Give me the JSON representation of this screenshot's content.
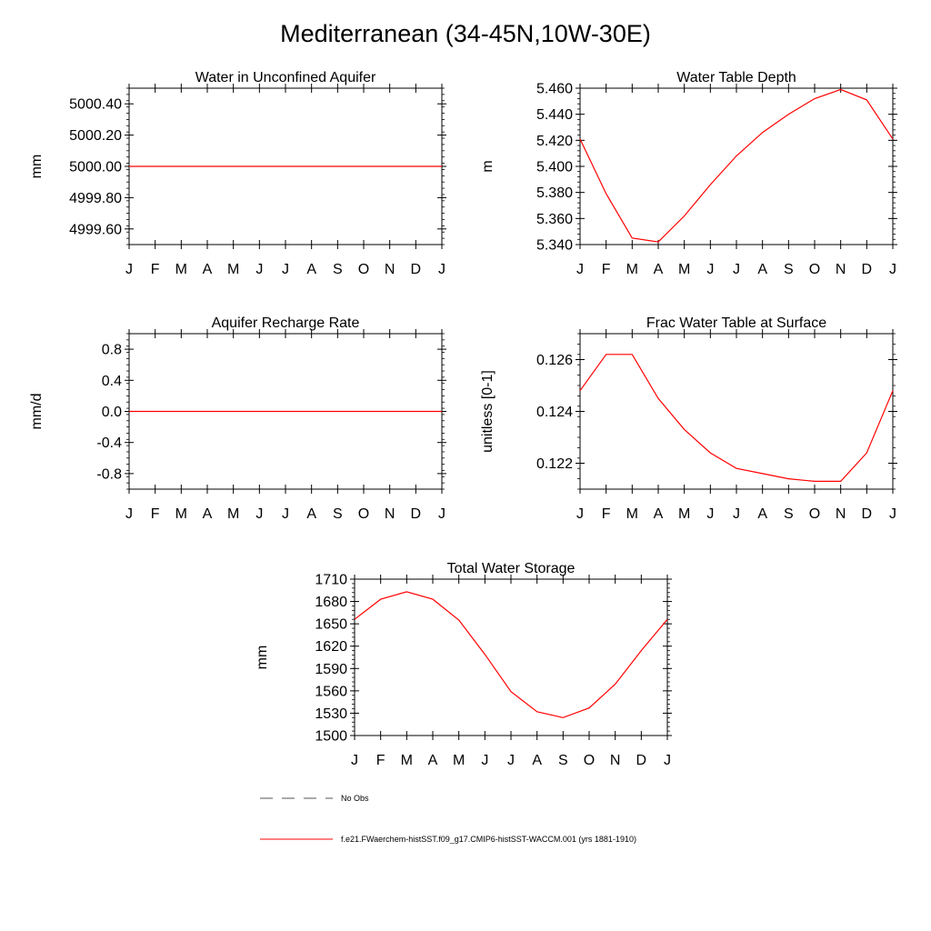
{
  "title": "Mediterranean (34-45N,10W-30E)",
  "months": [
    "J",
    "F",
    "M",
    "A",
    "M",
    "J",
    "J",
    "A",
    "S",
    "O",
    "N",
    "D",
    "J"
  ],
  "chart_data": [
    {
      "type": "line",
      "title": "Water in Unconfined Aquifer",
      "ylabel": "mm",
      "ylim": [
        4999.5,
        5000.5
      ],
      "yticks": [
        4999.6,
        4999.8,
        5000.0,
        5000.2,
        5000.4
      ],
      "ytick_labels": [
        "4999.60",
        "4999.80",
        "5000.00",
        "5000.20",
        "5000.40"
      ],
      "series": [
        {
          "values": [
            5000,
            5000,
            5000,
            5000,
            5000,
            5000,
            5000,
            5000,
            5000,
            5000,
            5000,
            5000,
            5000
          ]
        }
      ]
    },
    {
      "type": "line",
      "title": "Water Table Depth",
      "ylabel": "m",
      "ylim": [
        5.34,
        5.46
      ],
      "yticks": [
        5.34,
        5.36,
        5.38,
        5.4,
        5.42,
        5.44,
        5.46
      ],
      "ytick_labels": [
        "5.340",
        "5.360",
        "5.380",
        "5.400",
        "5.420",
        "5.440",
        "5.460"
      ],
      "series": [
        {
          "values": [
            5.421,
            5.379,
            5.345,
            5.342,
            5.362,
            5.386,
            5.408,
            5.426,
            5.44,
            5.452,
            5.459,
            5.451,
            5.421
          ]
        }
      ]
    },
    {
      "type": "line",
      "title": "Aquifer Recharge Rate",
      "ylabel": "mm/d",
      "ylim": [
        -1.0,
        1.0
      ],
      "yticks": [
        -0.8,
        -0.4,
        0.0,
        0.4,
        0.8
      ],
      "ytick_labels": [
        "-0.8",
        "-0.4",
        "0.0",
        "0.4",
        "0.8"
      ],
      "series": [
        {
          "values": [
            0,
            0,
            0,
            0,
            0,
            0,
            0,
            0,
            0,
            0,
            0,
            0,
            0
          ]
        }
      ]
    },
    {
      "type": "line",
      "title": "Frac Water Table at Surface",
      "ylabel": "unitless [0-1]",
      "ylim": [
        0.121,
        0.127
      ],
      "yticks": [
        0.122,
        0.124,
        0.126
      ],
      "ytick_labels": [
        "0.122",
        "0.124",
        "0.126"
      ],
      "series": [
        {
          "values": [
            0.1248,
            0.1262,
            0.1262,
            0.1245,
            0.1233,
            0.1224,
            0.1218,
            0.1216,
            0.1214,
            0.1213,
            0.1213,
            0.1224,
            0.1248
          ]
        }
      ]
    },
    {
      "type": "line",
      "title": "Total Water Storage",
      "ylabel": "mm",
      "ylim": [
        1500,
        1710
      ],
      "yticks": [
        1500,
        1530,
        1560,
        1590,
        1620,
        1650,
        1680,
        1710
      ],
      "ytick_labels": [
        "1500",
        "1530",
        "1560",
        "1590",
        "1620",
        "1650",
        "1680",
        "1710"
      ],
      "series": [
        {
          "values": [
            1656,
            1683,
            1693,
            1683,
            1655,
            1609,
            1559,
            1532,
            1524,
            1537,
            1569,
            1614,
            1656
          ]
        }
      ]
    }
  ],
  "legend": {
    "obs_label": "No Obs",
    "model_label": "f.e21.FWaerchem-histSST.f09_g17.CMIP6-histSST-WACCM.001 (yrs 1881-1910)",
    "model_color": "#ff0000",
    "obs_color": "#555555"
  }
}
